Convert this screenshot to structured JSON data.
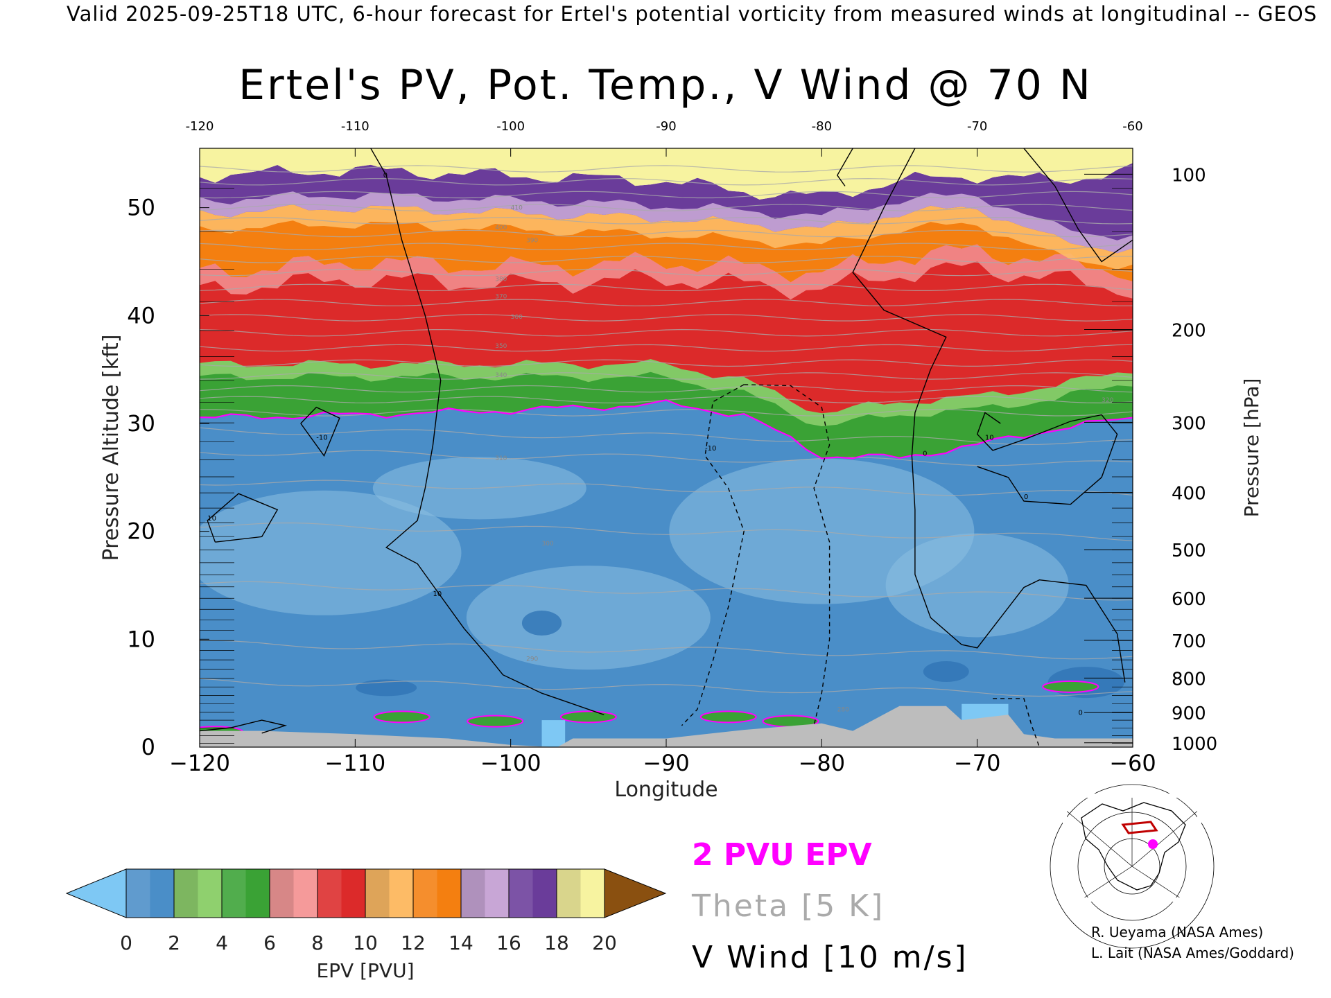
{
  "header": "Valid 2025-09-25T18 UTC, 6-hour forecast for Ertel's potential vorticity from measured winds at longitudinal -- GEOS",
  "title": "Ertel's PV, Pot. Temp., V Wind @ 70 N",
  "legend": {
    "epv_line": "2 PVU EPV",
    "theta_line": "Theta [5 K]",
    "wind_line": "V Wind [10 m/s]",
    "epv_color": "#ff00ff",
    "theta_color": "#aaaaaa",
    "wind_color": "#000000"
  },
  "colorbar": {
    "label": "EPV [PVU]",
    "ticks": [
      "0",
      "2",
      "4",
      "6",
      "8",
      "10",
      "12",
      "14",
      "16",
      "18",
      "20"
    ],
    "colors": [
      "#7ec8f4",
      "#4a8ec8",
      "#8fd06e",
      "#3aa235",
      "#f59a9a",
      "#dc2a2a",
      "#fdbb66",
      "#f47f10",
      "#c8a6d6",
      "#6a3c9a",
      "#f7f3a0",
      "#8a5010"
    ]
  },
  "credits": [
    "R. Ueyama (NASA Ames)",
    "L. Lait (NASA Ames/Goddard)"
  ],
  "chart_data": {
    "type": "heatmap",
    "title": "Ertel's PV, Pot. Temp., V Wind @ 70 N",
    "xlabel": "Longitude",
    "ylabel": "Pressure Altitude [kft]",
    "ylabel_right": "Pressure [hPa]",
    "xlim": [
      -120,
      -60
    ],
    "ylim": [
      0,
      55.5
    ],
    "x_ticks": [
      -120,
      -110,
      -100,
      -90,
      -80,
      -70,
      -60
    ],
    "x_tick_labels": [
      "−120",
      "−110",
      "−100",
      "−90",
      "−80",
      "−70",
      "−60"
    ],
    "top_x_tick_labels": [
      "-120",
      "-110",
      "-100",
      "-90",
      "-80",
      "-70",
      "-60"
    ],
    "y_ticks": [
      0,
      10,
      20,
      30,
      40,
      50
    ],
    "pressure_ticks": [
      {
        "hPa": 100,
        "kft": 53.1
      },
      {
        "hPa": 200,
        "kft": 38.7
      },
      {
        "hPa": 300,
        "kft": 30.1
      },
      {
        "hPa": 400,
        "kft": 23.6
      },
      {
        "hPa": 500,
        "kft": 18.3
      },
      {
        "hPa": 600,
        "kft": 13.8
      },
      {
        "hPa": 700,
        "kft": 9.9
      },
      {
        "hPa": 800,
        "kft": 6.4
      },
      {
        "hPa": 900,
        "kft": 3.2
      },
      {
        "hPa": 1000,
        "kft": 0.4
      }
    ],
    "epv_bands_kft_by_lon": {
      "lon": [
        -120,
        -110,
        -100,
        -90,
        -85,
        -80,
        -75,
        -70,
        -65,
        -60
      ],
      "tropopause_2pvu": [
        30.5,
        30.8,
        31.2,
        31.8,
        30.8,
        27.0,
        26.8,
        28.0,
        29.5,
        30.5
      ],
      "green_top": [
        35.5,
        35.5,
        35.5,
        35.5,
        34.0,
        31.0,
        32.0,
        32.5,
        33.5,
        35.0
      ],
      "red_top": [
        44.0,
        45.0,
        44.5,
        45.0,
        44.5,
        44.0,
        45.5,
        46.0,
        45.0,
        44.0
      ],
      "orange_top": [
        49.5,
        50.0,
        49.5,
        49.0,
        48.5,
        48.0,
        49.5,
        50.0,
        47.0,
        46.0
      ],
      "purple_top": [
        53.0,
        53.5,
        53.0,
        52.5,
        51.5,
        51.0,
        52.5,
        53.0,
        52.5,
        53.5
      ]
    },
    "theta_labels": [
      "410",
      "400",
      "390",
      "380",
      "370",
      "360",
      "350",
      "340",
      "320",
      "310",
      "300",
      "290",
      "280"
    ],
    "wind_contour_labels": [
      "0",
      "10",
      "-10",
      "10",
      "0",
      "10",
      "0",
      "-10",
      "0"
    ],
    "epv_units": "PVU",
    "epv_range": [
      0,
      20
    ]
  }
}
